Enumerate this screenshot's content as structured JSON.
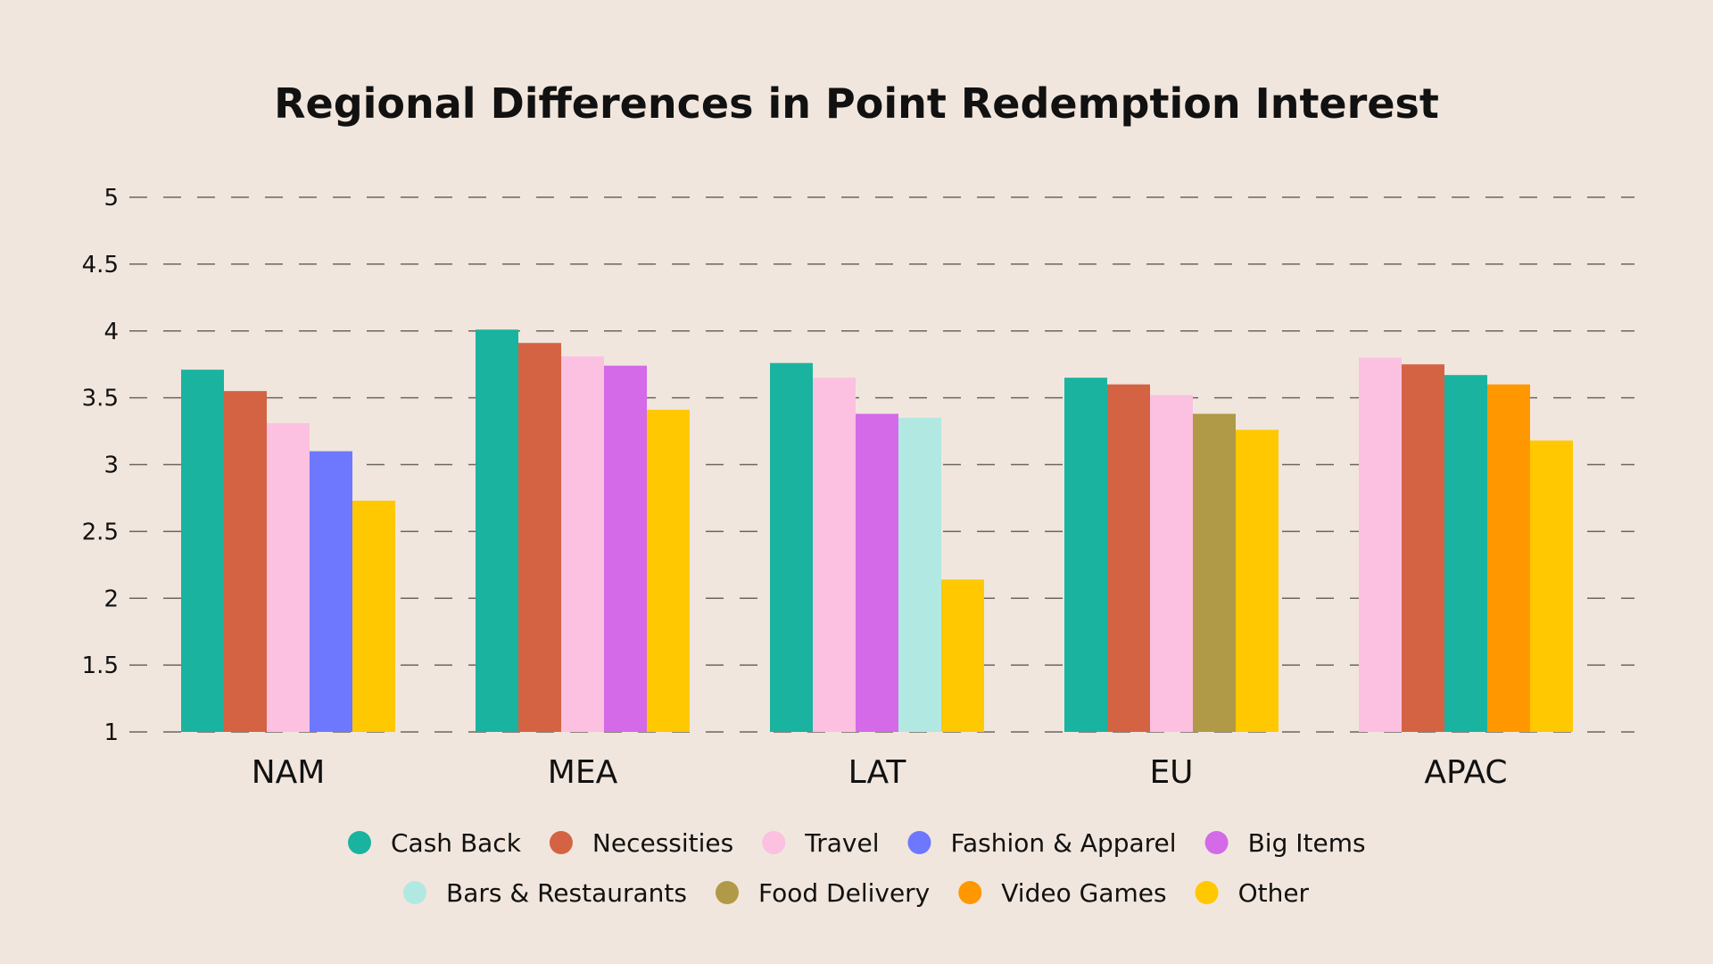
{
  "chart_data": {
    "type": "bar",
    "title": "Regional Differences in Point Redemption Interest",
    "xlabel": "",
    "ylabel": "",
    "ylim": [
      1,
      5
    ],
    "yticks": [
      "1",
      "1.5",
      "2",
      "2.5",
      "3",
      "3.5",
      "4",
      "4.5",
      "5"
    ],
    "ytick_values": [
      1,
      1.5,
      2,
      2.5,
      3,
      3.5,
      4,
      4.5,
      5
    ],
    "grid": true,
    "legend_position": "bottom",
    "categories": [
      "NAM",
      "MEA",
      "LAT",
      "EU",
      "APAC"
    ],
    "legend": [
      {
        "name": "Cash Back",
        "color": "#1ab3a0"
      },
      {
        "name": "Necessities",
        "color": "#d46344"
      },
      {
        "name": "Travel",
        "color": "#fcc0e1"
      },
      {
        "name": "Fashion & Apparel",
        "color": "#6d78ff"
      },
      {
        "name": "Big Items",
        "color": "#d46ae8"
      },
      {
        "name": "Bars & Restaurants",
        "color": "#b2e8e2"
      },
      {
        "name": "Food Delivery",
        "color": "#b09a47"
      },
      {
        "name": "Video Games",
        "color": "#ff9800"
      },
      {
        "name": "Other",
        "color": "#ffc800"
      }
    ],
    "groups": [
      {
        "category": "NAM",
        "bars": [
          {
            "series": "Cash Back",
            "value": 3.71
          },
          {
            "series": "Necessities",
            "value": 3.55
          },
          {
            "series": "Travel",
            "value": 3.31
          },
          {
            "series": "Fashion & Apparel",
            "value": 3.1
          },
          {
            "series": "Other",
            "value": 2.73
          }
        ]
      },
      {
        "category": "MEA",
        "bars": [
          {
            "series": "Cash Back",
            "value": 4.01
          },
          {
            "series": "Necessities",
            "value": 3.91
          },
          {
            "series": "Travel",
            "value": 3.81
          },
          {
            "series": "Big Items",
            "value": 3.74
          },
          {
            "series": "Other",
            "value": 3.41
          }
        ]
      },
      {
        "category": "LAT",
        "bars": [
          {
            "series": "Cash Back",
            "value": 3.76
          },
          {
            "series": "Travel",
            "value": 3.65
          },
          {
            "series": "Big Items",
            "value": 3.38
          },
          {
            "series": "Bars & Restaurants",
            "value": 3.35
          },
          {
            "series": "Other",
            "value": 2.14
          }
        ]
      },
      {
        "category": "EU",
        "bars": [
          {
            "series": "Cash Back",
            "value": 3.65
          },
          {
            "series": "Necessities",
            "value": 3.6
          },
          {
            "series": "Travel",
            "value": 3.52
          },
          {
            "series": "Food Delivery",
            "value": 3.38
          },
          {
            "series": "Other",
            "value": 3.26
          }
        ]
      },
      {
        "category": "APAC",
        "bars": [
          {
            "series": "Travel",
            "value": 3.8
          },
          {
            "series": "Necessities",
            "value": 3.75
          },
          {
            "series": "Cash Back",
            "value": 3.67
          },
          {
            "series": "Video Games",
            "value": 3.6
          },
          {
            "series": "Other",
            "value": 3.18
          }
        ]
      }
    ]
  }
}
